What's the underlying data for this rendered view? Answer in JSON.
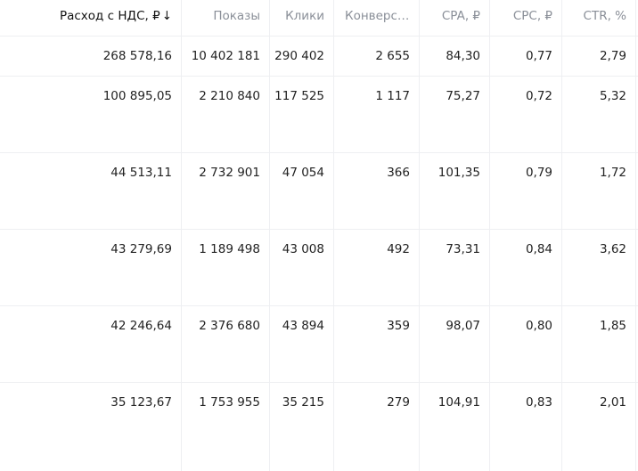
{
  "table": {
    "columns": [
      {
        "key": "spend",
        "label": "Расход с НДС, ₽",
        "sort_arrow": "↓",
        "active": true
      },
      {
        "key": "impressions",
        "label": "Показы",
        "sort_arrow": "",
        "active": false
      },
      {
        "key": "clicks",
        "label": "Клики",
        "sort_arrow": "",
        "active": false
      },
      {
        "key": "conversions",
        "label": "Конверс…",
        "sort_arrow": "",
        "active": false
      },
      {
        "key": "cpa",
        "label": "CPA, ₽",
        "sort_arrow": "",
        "active": false
      },
      {
        "key": "cpc",
        "label": "CPC, ₽",
        "sort_arrow": "",
        "active": false
      },
      {
        "key": "ctr",
        "label": "CTR, %",
        "sort_arrow": "",
        "active": false
      }
    ],
    "rows": [
      [
        "268 578,16",
        "10 402 181",
        "290 402",
        "2 655",
        "84,30",
        "0,77",
        "2,79"
      ],
      [
        "100 895,05",
        "2 210 840",
        "117 525",
        "1 117",
        "75,27",
        "0,72",
        "5,32"
      ],
      [
        "44 513,11",
        "2 732 901",
        "47 054",
        "366",
        "101,35",
        "0,79",
        "1,72"
      ],
      [
        "43 279,69",
        "1 189 498",
        "43 008",
        "492",
        "73,31",
        "0,84",
        "3,62"
      ],
      [
        "42 246,64",
        "2 376 680",
        "43 894",
        "359",
        "98,07",
        "0,80",
        "1,85"
      ],
      [
        "35 123,67",
        "1 753 955",
        "35 215",
        "279",
        "104,91",
        "0,83",
        "2,01"
      ]
    ]
  }
}
